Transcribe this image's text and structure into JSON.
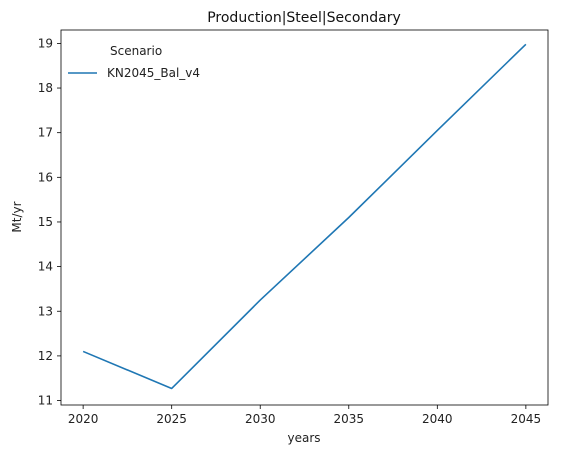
{
  "chart_data": {
    "type": "line",
    "title": "Production|Steel|Secondary",
    "xlabel": "years",
    "ylabel": "Mt/yr",
    "x": [
      2020,
      2025,
      2030,
      2035,
      2040,
      2045
    ],
    "xticks": [
      2020,
      2025,
      2030,
      2035,
      2040,
      2045
    ],
    "yticks": [
      11,
      12,
      13,
      14,
      15,
      16,
      17,
      18,
      19
    ],
    "xlim": [
      2018.75,
      2046.25
    ],
    "ylim": [
      10.9,
      19.3
    ],
    "grid": false,
    "legend": {
      "title": "Scenario",
      "placement": "top-left"
    },
    "series": [
      {
        "name": "KN2045_Bal_v4",
        "color": "#1f77b4",
        "values": [
          12.1,
          11.27,
          13.25,
          15.1,
          17.05,
          18.98
        ]
      }
    ]
  }
}
